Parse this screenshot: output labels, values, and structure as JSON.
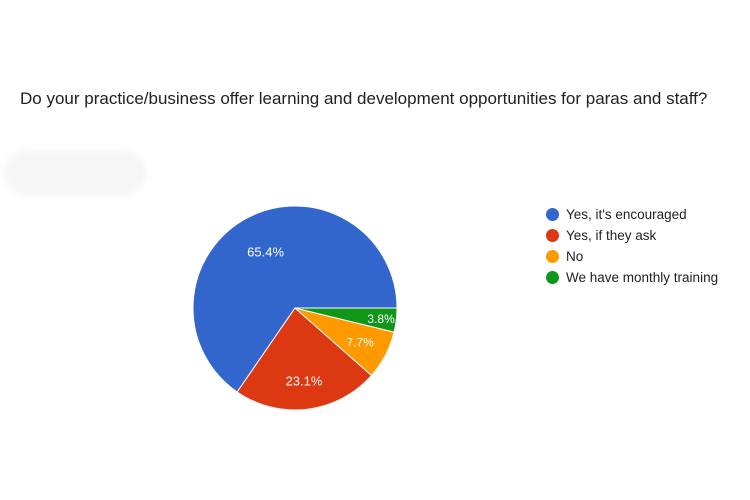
{
  "question": "Do your practice/business offer learning and development opportunities for paras and staff?",
  "chart_data": {
    "type": "pie",
    "title": "",
    "categories": [
      "Yes, it's encouraged",
      "Yes, if they ask",
      "No",
      "We have monthly training"
    ],
    "values": [
      65.4,
      23.1,
      7.7,
      3.8
    ],
    "value_labels": [
      "65.4%",
      "23.1%",
      "7.7%",
      "3.8%"
    ],
    "colors": [
      "#3366cc",
      "#dc3912",
      "#ff9900",
      "#109618"
    ],
    "start_angle": "3 o'clock, counter-clockwise",
    "legend_position": "right"
  }
}
